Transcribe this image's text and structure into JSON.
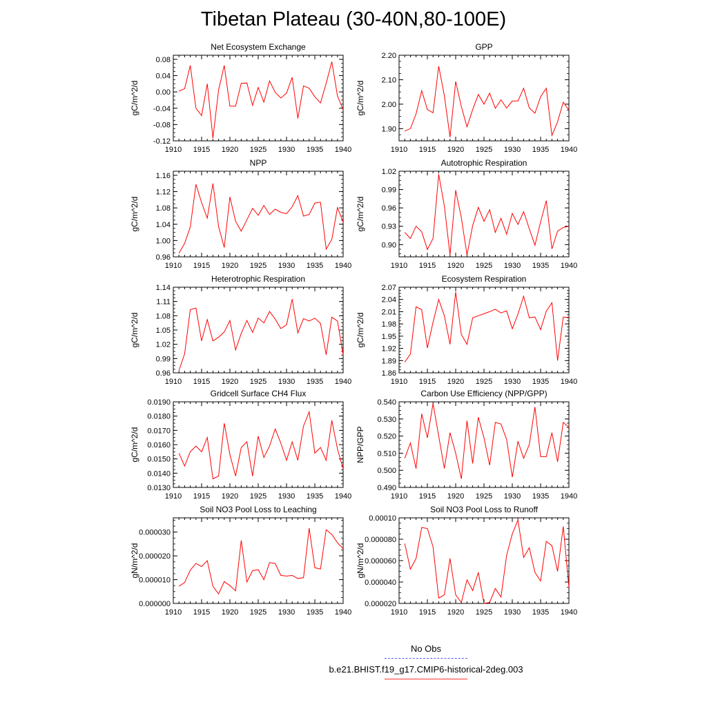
{
  "page": {
    "title": "Tibetan Plateau (30-40N,80-100E)"
  },
  "legend": {
    "obs_label": "No Obs",
    "obs_color": "#5a5aff",
    "model_label": "b.e21.BHIST.f19_g17.CMIP6-historical-2deg.003",
    "model_color": "#ff0000"
  },
  "chart_data": [
    {
      "type": "line",
      "title": "Net Ecosystem Exchange",
      "ylabel": "gC/m^2/d",
      "xlim": [
        1910,
        1940
      ],
      "ylim": [
        -0.12,
        0.09
      ],
      "xticks": [
        1910,
        1915,
        1920,
        1925,
        1930,
        1935,
        1940
      ],
      "yticks": [
        -0.12,
        -0.08,
        -0.04,
        0.0,
        0.04,
        0.08
      ],
      "ytick_labels": [
        "-0.12",
        "-0.08",
        "-0.04",
        "0.00",
        "0.04",
        "0.08"
      ],
      "x": [
        1911,
        1912,
        1913,
        1914,
        1915,
        1916,
        1917,
        1918,
        1919,
        1920,
        1921,
        1922,
        1923,
        1924,
        1925,
        1926,
        1927,
        1928,
        1929,
        1930,
        1931,
        1932,
        1933,
        1934,
        1935,
        1936,
        1937,
        1938,
        1939,
        1940
      ],
      "series": [
        {
          "values": [
            0.002,
            0.008,
            0.065,
            -0.04,
            -0.058,
            0.02,
            -0.113,
            0.005,
            0.065,
            -0.035,
            -0.035,
            0.021,
            0.022,
            -0.033,
            0.011,
            -0.025,
            0.027,
            -0.001,
            -0.015,
            -0.003,
            0.036,
            -0.065,
            0.015,
            0.009,
            -0.012,
            -0.027,
            0.021,
            0.074,
            -0.01,
            -0.044
          ]
        }
      ]
    },
    {
      "type": "line",
      "title": "GPP",
      "ylabel": "gC/m^2/d",
      "xlim": [
        1910,
        1940
      ],
      "ylim": [
        1.85,
        2.2
      ],
      "xticks": [
        1910,
        1915,
        1920,
        1925,
        1930,
        1935,
        1940
      ],
      "yticks": [
        1.9,
        2.0,
        2.1,
        2.2
      ],
      "ytick_labels": [
        "1.90",
        "2.00",
        "2.10",
        "2.20"
      ],
      "x": [
        1911,
        1912,
        1913,
        1914,
        1915,
        1916,
        1917,
        1918,
        1919,
        1920,
        1921,
        1922,
        1923,
        1924,
        1925,
        1926,
        1927,
        1928,
        1929,
        1930,
        1931,
        1932,
        1933,
        1934,
        1935,
        1936,
        1937,
        1938,
        1939,
        1940
      ],
      "series": [
        {
          "values": [
            1.89,
            1.9,
            1.96,
            2.055,
            1.978,
            1.965,
            2.155,
            2.035,
            1.865,
            2.093,
            1.99,
            1.907,
            1.978,
            2.04,
            2.0,
            2.045,
            1.983,
            2.018,
            1.984,
            2.013,
            2.013,
            2.065,
            1.985,
            1.963,
            2.03,
            2.065,
            1.872,
            1.928,
            2.008,
            1.975
          ]
        }
      ]
    },
    {
      "type": "line",
      "title": "NPP",
      "ylabel": "gC/m^2/d",
      "xlim": [
        1910,
        1940
      ],
      "ylim": [
        0.96,
        1.17
      ],
      "xticks": [
        1910,
        1915,
        1920,
        1925,
        1930,
        1935,
        1940
      ],
      "yticks": [
        0.96,
        1.0,
        1.04,
        1.08,
        1.12,
        1.16
      ],
      "ytick_labels": [
        "0.96",
        "1.00",
        "1.04",
        "1.08",
        "1.12",
        "1.16"
      ],
      "x": [
        1911,
        1912,
        1913,
        1914,
        1915,
        1916,
        1917,
        1918,
        1919,
        1920,
        1921,
        1922,
        1923,
        1924,
        1925,
        1926,
        1927,
        1928,
        1929,
        1930,
        1931,
        1932,
        1933,
        1934,
        1935,
        1936,
        1937,
        1938,
        1939,
        1940
      ],
      "series": [
        {
          "values": [
            0.969,
            0.993,
            1.033,
            1.138,
            1.093,
            1.055,
            1.14,
            1.034,
            0.983,
            1.107,
            1.047,
            1.023,
            1.051,
            1.079,
            1.062,
            1.086,
            1.064,
            1.077,
            1.069,
            1.066,
            1.083,
            1.11,
            1.06,
            1.064,
            1.092,
            1.094,
            0.979,
            1.003,
            1.081,
            1.045
          ]
        }
      ]
    },
    {
      "type": "line",
      "title": "Autotrophic Respiration",
      "ylabel": "gC/m^2/d",
      "xlim": [
        1910,
        1940
      ],
      "ylim": [
        0.88,
        1.02
      ],
      "xticks": [
        1910,
        1915,
        1920,
        1925,
        1930,
        1935,
        1940
      ],
      "yticks": [
        0.9,
        0.93,
        0.96,
        0.99,
        1.02
      ],
      "ytick_labels": [
        "0.90",
        "0.93",
        "0.96",
        "0.99",
        "1.02"
      ],
      "x": [
        1911,
        1912,
        1913,
        1914,
        1915,
        1916,
        1917,
        1918,
        1919,
        1920,
        1921,
        1922,
        1923,
        1924,
        1925,
        1926,
        1927,
        1928,
        1929,
        1930,
        1931,
        1932,
        1933,
        1934,
        1935,
        1936,
        1937,
        1938,
        1939,
        1940
      ],
      "series": [
        {
          "values": [
            0.92,
            0.91,
            0.93,
            0.921,
            0.892,
            0.91,
            1.015,
            0.963,
            0.883,
            0.989,
            0.944,
            0.883,
            0.931,
            0.961,
            0.938,
            0.957,
            0.92,
            0.943,
            0.917,
            0.951,
            0.933,
            0.954,
            0.926,
            0.899,
            0.937,
            0.972,
            0.893,
            0.922,
            0.928,
            0.93
          ]
        }
      ]
    },
    {
      "type": "line",
      "title": "Heterotrophic Respiration",
      "ylabel": "gC/m^2/d",
      "xlim": [
        1910,
        1940
      ],
      "ylim": [
        0.96,
        1.14
      ],
      "xticks": [
        1910,
        1915,
        1920,
        1925,
        1930,
        1935,
        1940
      ],
      "yticks": [
        0.96,
        0.99,
        1.02,
        1.05,
        1.08,
        1.11,
        1.14
      ],
      "ytick_labels": [
        "0.96",
        "0.99",
        "1.02",
        "1.05",
        "1.08",
        "1.11",
        "1.14"
      ],
      "x": [
        1911,
        1912,
        1913,
        1914,
        1915,
        1916,
        1917,
        1918,
        1919,
        1920,
        1921,
        1922,
        1923,
        1924,
        1925,
        1926,
        1927,
        1928,
        1929,
        1930,
        1931,
        1932,
        1933,
        1934,
        1935,
        1936,
        1937,
        1938,
        1939,
        1940
      ],
      "series": [
        {
          "values": [
            0.965,
            1.0,
            1.093,
            1.096,
            1.027,
            1.072,
            1.027,
            1.035,
            1.046,
            1.07,
            1.008,
            1.043,
            1.07,
            1.045,
            1.075,
            1.065,
            1.089,
            1.073,
            1.053,
            1.061,
            1.115,
            1.044,
            1.074,
            1.069,
            1.075,
            1.064,
            0.998,
            1.077,
            1.069,
            0.998
          ]
        }
      ]
    },
    {
      "type": "line",
      "title": "Ecosystem Respiration",
      "ylabel": "gC/m^2/d",
      "xlim": [
        1910,
        1940
      ],
      "ylim": [
        1.86,
        2.07
      ],
      "xticks": [
        1910,
        1915,
        1920,
        1925,
        1930,
        1935,
        1940
      ],
      "yticks": [
        1.86,
        1.89,
        1.92,
        1.95,
        1.98,
        2.01,
        2.04,
        2.07
      ],
      "ytick_labels": [
        "1.86",
        "1.89",
        "1.92",
        "1.95",
        "1.98",
        "2.01",
        "2.04",
        "2.07"
      ],
      "x": [
        1911,
        1912,
        1913,
        1914,
        1915,
        1916,
        1917,
        1918,
        1919,
        1920,
        1921,
        1922,
        1923,
        1924,
        1925,
        1926,
        1927,
        1928,
        1929,
        1930,
        1931,
        1932,
        1933,
        1934,
        1935,
        1936,
        1937,
        1938,
        1939,
        1940
      ],
      "series": [
        {
          "values": [
            1.886,
            1.906,
            2.022,
            2.015,
            1.921,
            1.984,
            2.04,
            2.0,
            1.93,
            2.058,
            1.954,
            1.93,
            1.995,
            2.0,
            2.005,
            2.01,
            2.016,
            2.007,
            2.012,
            1.968,
            2.004,
            2.048,
            1.995,
            1.997,
            1.966,
            2.011,
            2.032,
            1.89,
            1.997,
            1.996
          ]
        }
      ]
    },
    {
      "type": "line",
      "title": "Gridcell Surface CH4 Flux",
      "ylabel": "gC/m^2/d",
      "xlim": [
        1910,
        1940
      ],
      "ylim": [
        0.013,
        0.019
      ],
      "xticks": [
        1910,
        1915,
        1920,
        1925,
        1930,
        1935,
        1940
      ],
      "yticks": [
        0.013,
        0.014,
        0.015,
        0.016,
        0.017,
        0.018,
        0.019
      ],
      "ytick_labels": [
        "0.0130",
        "0.0140",
        "0.0150",
        "0.0160",
        "0.0170",
        "0.0180",
        "0.0190"
      ],
      "x": [
        1911,
        1912,
        1913,
        1914,
        1915,
        1916,
        1917,
        1918,
        1919,
        1920,
        1921,
        1922,
        1923,
        1924,
        1925,
        1926,
        1927,
        1928,
        1929,
        1930,
        1931,
        1932,
        1933,
        1934,
        1935,
        1936,
        1937,
        1938,
        1939,
        1940
      ],
      "series": [
        {
          "values": [
            0.0154,
            0.0145,
            0.0155,
            0.0159,
            0.0155,
            0.0165,
            0.0136,
            0.0138,
            0.0175,
            0.0153,
            0.0138,
            0.0158,
            0.0162,
            0.0138,
            0.0166,
            0.0151,
            0.0159,
            0.0171,
            0.0161,
            0.0149,
            0.0162,
            0.0149,
            0.0173,
            0.0183,
            0.0154,
            0.0158,
            0.0149,
            0.0177,
            0.0157,
            0.0143
          ]
        }
      ]
    },
    {
      "type": "line",
      "title": "Carbon Use Efficiency (NPP/GPP)",
      "ylabel": "NPP/GPP",
      "xlim": [
        1910,
        1940
      ],
      "ylim": [
        0.49,
        0.54
      ],
      "xticks": [
        1910,
        1915,
        1920,
        1925,
        1930,
        1935,
        1940
      ],
      "yticks": [
        0.49,
        0.5,
        0.51,
        0.52,
        0.53,
        0.54
      ],
      "ytick_labels": [
        "0.490",
        "0.500",
        "0.510",
        "0.520",
        "0.530",
        "0.540"
      ],
      "x": [
        1911,
        1912,
        1913,
        1914,
        1915,
        1916,
        1917,
        1918,
        1919,
        1920,
        1921,
        1922,
        1923,
        1924,
        1925,
        1926,
        1927,
        1928,
        1929,
        1930,
        1931,
        1932,
        1933,
        1934,
        1935,
        1936,
        1937,
        1938,
        1939,
        1940
      ],
      "series": [
        {
          "values": [
            0.507,
            0.516,
            0.501,
            0.533,
            0.519,
            0.539,
            0.52,
            0.501,
            0.522,
            0.51,
            0.495,
            0.529,
            0.504,
            0.531,
            0.519,
            0.503,
            0.528,
            0.527,
            0.518,
            0.496,
            0.517,
            0.507,
            0.515,
            0.537,
            0.508,
            0.508,
            0.522,
            0.505,
            0.528,
            0.525
          ]
        }
      ]
    },
    {
      "type": "line",
      "title": "Soil NO3 Pool Loss to Leaching",
      "ylabel": "gN/m^2/d",
      "xlim": [
        1910,
        1940
      ],
      "ylim": [
        0.0,
        3.6e-05
      ],
      "xticks": [
        1910,
        1915,
        1920,
        1925,
        1930,
        1935,
        1940
      ],
      "yticks": [
        0.0,
        1e-05,
        2e-05,
        3e-05
      ],
      "ytick_labels": [
        "0.000000",
        "0.000010",
        "0.000020",
        "0.000030"
      ],
      "x": [
        1911,
        1912,
        1913,
        1914,
        1915,
        1916,
        1917,
        1918,
        1919,
        1920,
        1921,
        1922,
        1923,
        1924,
        1925,
        1926,
        1927,
        1928,
        1929,
        1930,
        1931,
        1932,
        1933,
        1934,
        1935,
        1936,
        1937,
        1938,
        1939,
        1940
      ],
      "series": [
        {
          "values": [
            7.2e-06,
            8.8e-06,
            1.4e-05,
            1.68e-05,
            1.55e-05,
            1.8e-05,
            7.2e-06,
            4e-06,
            9.2e-06,
            7.5e-06,
            5.3e-06,
            2.65e-05,
            9e-06,
            1.38e-05,
            1.42e-05,
            1e-05,
            1.72e-05,
            1.68e-05,
            1.18e-05,
            1.15e-05,
            1.18e-05,
            1.05e-05,
            1.08e-05,
            3.17e-05,
            1.5e-05,
            1.45e-05,
            3.1e-05,
            2.9e-05,
            2.55e-05,
            2.3e-05
          ]
        }
      ]
    },
    {
      "type": "line",
      "title": "Soil NO3 Pool Loss to Runoff",
      "ylabel": "gN/m^2/d",
      "xlim": [
        1910,
        1940
      ],
      "ylim": [
        2e-05,
        0.0001
      ],
      "xticks": [
        1910,
        1915,
        1920,
        1925,
        1930,
        1935,
        1940
      ],
      "yticks": [
        2e-05,
        4e-05,
        6e-05,
        8e-05,
        0.0001
      ],
      "ytick_labels": [
        "0.000020",
        "0.000040",
        "0.000060",
        "0.000080",
        "0.00010"
      ],
      "x": [
        1911,
        1912,
        1913,
        1914,
        1915,
        1916,
        1917,
        1918,
        1919,
        1920,
        1921,
        1922,
        1923,
        1924,
        1925,
        1926,
        1927,
        1928,
        1929,
        1930,
        1931,
        1932,
        1933,
        1934,
        1935,
        1936,
        1937,
        1938,
        1939,
        1940
      ],
      "series": [
        {
          "values": [
            7.6e-05,
            5.2e-05,
            6.2e-05,
            9.1e-05,
            9e-05,
            7.3e-05,
            2.5e-05,
            2.8e-05,
            6.2e-05,
            2.8e-05,
            2.1e-05,
            4.2e-05,
            3.2e-05,
            4.9e-05,
            2e-05,
            2.1e-05,
            3.4e-05,
            2.6e-05,
            6.5e-05,
            8.5e-05,
            9.8e-05,
            6.3e-05,
            7.2e-05,
            4.9e-05,
            4.1e-05,
            7.8e-05,
            7.4e-05,
            5e-05,
            9.2e-05,
            3.5e-05
          ]
        }
      ]
    }
  ]
}
